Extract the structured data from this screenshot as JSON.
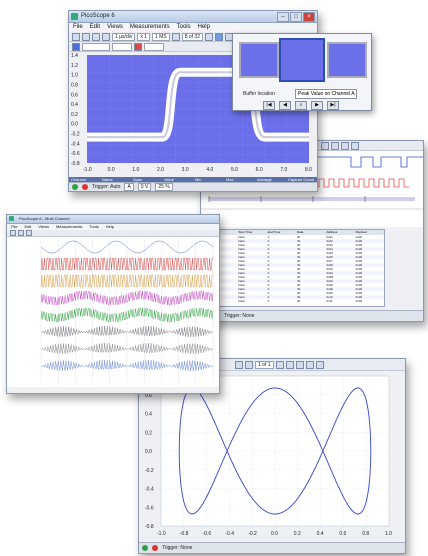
{
  "main_window": {
    "title": "PicoScope 6",
    "menu": [
      "File",
      "Edit",
      "Views",
      "Measurements",
      "Tools",
      "Help"
    ],
    "toolbar_timebase": "1 µs/div",
    "toolbar_zoom": "x 1",
    "toolbar_samples": "1 MS",
    "buffer_counter": "8 of 32",
    "yaxis_ticks": [
      "1.4",
      "1.2",
      "1.0",
      "0.8",
      "0.6",
      "0.4",
      "0.2",
      "0.0",
      "-0.2",
      "-0.4",
      "-0.6",
      "-0.8"
    ],
    "xaxis_ticks": [
      "-1.0",
      "0.0",
      "1.0",
      "2.0",
      "3.0",
      "4.0",
      "5.0",
      "6.0",
      "7.0",
      "8.0"
    ],
    "status_trigger": "Trigger: Auto",
    "status_channel": "A",
    "status_level": "0 V",
    "status_percent": "25 %",
    "status_measure_headers": [
      "Channel",
      "Name",
      "Span",
      "Value",
      "Min",
      "Max",
      "Average",
      "Capture Count"
    ],
    "colors": {
      "plot_bg": "#6a6ee8",
      "trace": "#ffffff",
      "accent": "#2a4fb3"
    }
  },
  "buffer_popup": {
    "label_location": "Buffer location",
    "selected_location": "Peak Value on Channel A"
  },
  "table_window": {
    "toolbar_counter": "1 of 1",
    "headers": [
      "Packet",
      "Start Time",
      "End Time",
      "Data",
      "Address",
      "Payload"
    ],
    "rows": [
      [
        "1",
        "Data",
        "0",
        "00",
        "0x01",
        "0x00"
      ],
      [
        "2",
        "Data",
        "0",
        "00",
        "0x02",
        "0x00"
      ],
      [
        "3",
        "Data",
        "0",
        "00",
        "0x03",
        "0x00"
      ],
      [
        "4",
        "Data",
        "0",
        "00",
        "0x04",
        "0x00"
      ],
      [
        "5",
        "Data",
        "0",
        "00",
        "0x05",
        "0x00"
      ],
      [
        "6",
        "Data",
        "0",
        "00",
        "0x06",
        "0x00"
      ],
      [
        "7",
        "Data",
        "0",
        "00",
        "0x07",
        "0x00"
      ],
      [
        "8",
        "Data",
        "0",
        "00",
        "0x08",
        "0x00"
      ],
      [
        "9",
        "Data",
        "0",
        "00",
        "0x09",
        "0x00"
      ],
      [
        "10",
        "Data",
        "0",
        "00",
        "0x0A",
        "0x00"
      ],
      [
        "11",
        "Data",
        "0",
        "00",
        "0x0B",
        "0x00"
      ],
      [
        "12",
        "Data",
        "0",
        "00",
        "0x0C",
        "0x00"
      ],
      [
        "13",
        "Data",
        "0",
        "00",
        "0x0D",
        "0x00"
      ],
      [
        "14",
        "Data",
        "0",
        "00",
        "0x0E",
        "0x00"
      ],
      [
        "15",
        "Data",
        "0",
        "00",
        "0x0F",
        "0x00"
      ],
      [
        "16",
        "Data",
        "0",
        "00",
        "0x10",
        "0x00"
      ],
      [
        "17",
        "Data",
        "0",
        "00",
        "0x11",
        "0x00"
      ]
    ],
    "status_trigger": "Trigger: None"
  },
  "multi_window": {
    "title": "PicoScope 6 - Multi Channel",
    "menu": [
      "File",
      "Edit",
      "Views",
      "Measurements",
      "Tools",
      "Help"
    ],
    "trace_colors": [
      "#4a6fd8",
      "#d84a4a",
      "#d8a04a",
      "#c44ac4",
      "#3aa84a",
      "#777777",
      "#888888",
      "#6a8ad8"
    ]
  },
  "xy_window": {
    "toolbar_counter": "1 of 1",
    "yaxis_ticks": [
      "0.8",
      "0.6",
      "0.4",
      "0.2",
      "0.0",
      "-0.2",
      "-0.4",
      "-0.6",
      "-0.8"
    ],
    "xaxis_ticks": [
      "-1.0",
      "-0.8",
      "-0.6",
      "-0.4",
      "-0.2",
      "0.0",
      "0.2",
      "0.4",
      "0.6",
      "0.8",
      "1.0"
    ],
    "status_trigger": "Trigger: None",
    "trace_color": "#3344cc"
  }
}
